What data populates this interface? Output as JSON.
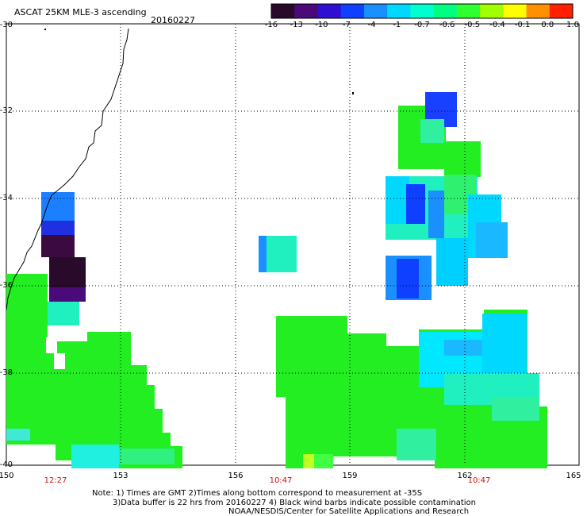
{
  "header": {
    "title": "ASCAT 25KM MLE-3 ascending",
    "date": "20160227"
  },
  "colorbar": {
    "labels": [
      "-16",
      "-13",
      "-10",
      "-7",
      "-4",
      "-1",
      "-0.7",
      "-0.6",
      "-0.5",
      "-0.4",
      "-0.1",
      "0.0",
      "1.0"
    ],
    "colors": [
      "#2a0a2a",
      "#4a0a7a",
      "#3010d0",
      "#1040ff",
      "#1a90ff",
      "#00d8ff",
      "#00ffd0",
      "#00ff80",
      "#30ff30",
      "#a0ff00",
      "#ffff00",
      "#ff9000",
      "#ff2000"
    ]
  },
  "axes": {
    "lat_labels": [
      "-30",
      "-32",
      "-34",
      "-36",
      "-38",
      "-40"
    ],
    "lon_labels": [
      "150",
      "153",
      "156",
      "159",
      "162",
      "165"
    ]
  },
  "times": [
    "12:27",
    "10:47",
    "10:47"
  ],
  "notes": {
    "line1": "Note: 1) Times are GMT 2)Times along bottom correspond to measurement at -35S",
    "line2": "3)Data buffer is 22 hrs from 20160227 4) Black wind barbs indicate possible contamination",
    "line3": "NOAA/NESDIS/Center for Satellite Applications and Research"
  }
}
